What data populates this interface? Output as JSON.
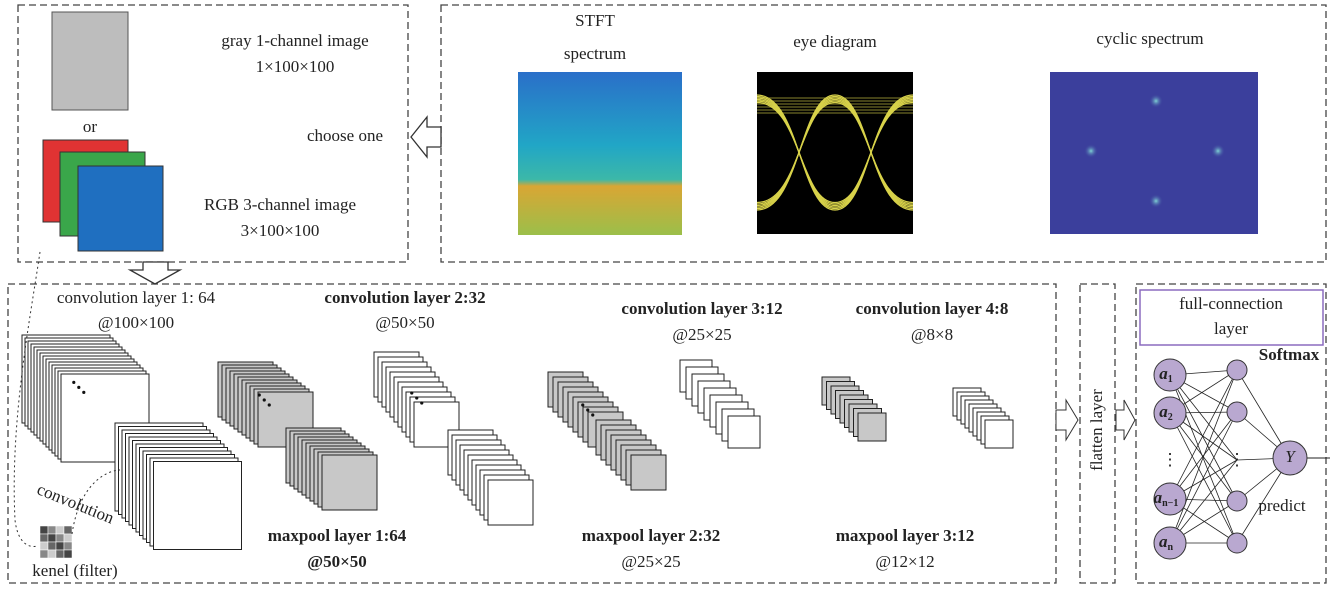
{
  "input_panel": {
    "gray_label": "gray 1-channel image",
    "gray_size": "1×100×100",
    "or": "or",
    "rgb_label": "RGB 3-channel image",
    "rgb_size": "3×100×100",
    "choose": "choose one"
  },
  "feature_panel": {
    "images": [
      {
        "title": [
          "STFT",
          "spectrum"
        ]
      },
      {
        "title": [
          "eye diagram"
        ]
      },
      {
        "title": [
          "cyclic spectrum"
        ]
      }
    ]
  },
  "cnn": {
    "conv_layers": [
      {
        "label": "convolution layer 1: 64",
        "size": "@100×100"
      },
      {
        "label": "convolution layer 2:32",
        "size": "@50×50"
      },
      {
        "label": "convolution layer 3:12",
        "size": "@25×25"
      },
      {
        "label": "convolution layer 4:8",
        "size": "@8×8"
      }
    ],
    "pool_layers": [
      {
        "label": "maxpool layer 1:64",
        "size": "@50×50"
      },
      {
        "label": "maxpool layer 2:32",
        "size": "@25×25"
      },
      {
        "label": "maxpool layer 3:12",
        "size": "@12×12"
      }
    ],
    "convolution_label": "convolution",
    "kernel_label": "kenel (filter)"
  },
  "flatten_label": "flatten layer",
  "fc": {
    "title": [
      "full-connection",
      "layer"
    ],
    "softmax": "Softmax",
    "predict": "predict",
    "dots": "⋮",
    "nodes": [
      {
        "base": "a",
        "sub": "1"
      },
      {
        "base": "a",
        "sub": "2"
      },
      {
        "base": "a",
        "sub": "n−1"
      },
      {
        "base": "a",
        "sub": "n"
      }
    ],
    "output": "Y"
  }
}
